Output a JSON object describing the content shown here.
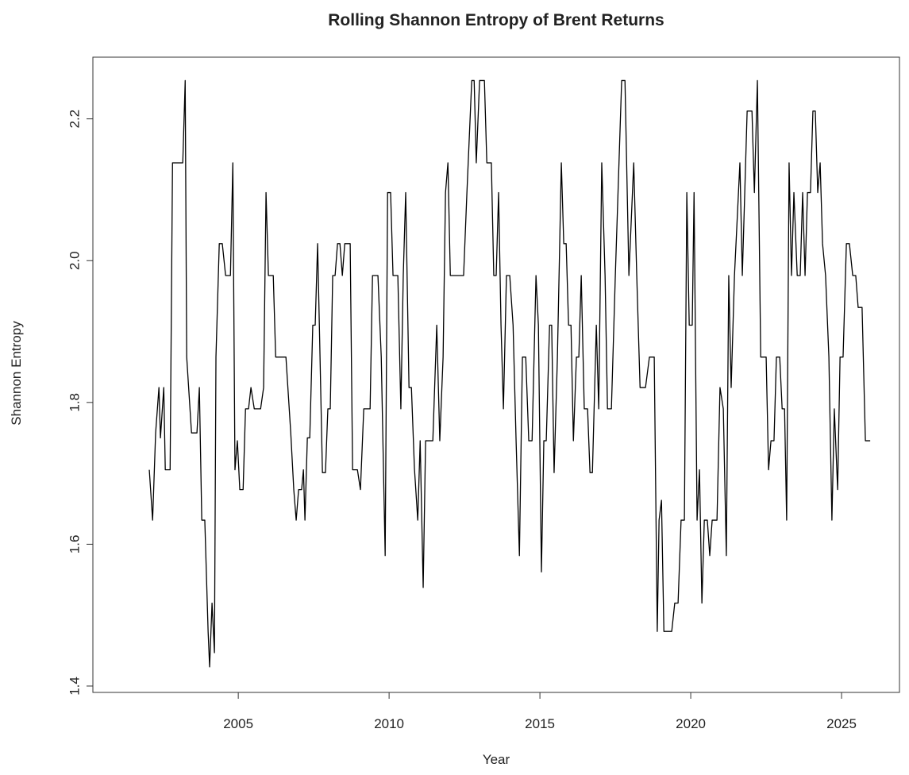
{
  "chart_data": {
    "type": "line",
    "title": "Rolling Shannon Entropy of Brent Returns",
    "x_label": "Year",
    "y_label": "Shannon Entropy",
    "color": "#000000",
    "x": [
      2002.05,
      2002.16,
      2002.26,
      2002.37,
      2002.42,
      2002.53,
      2002.58,
      2002.74,
      2002.82,
      2003.16,
      2003.24,
      2003.29,
      2003.45,
      2003.63,
      2003.71,
      2003.79,
      2003.89,
      2004.0,
      2004.05,
      2004.13,
      2004.21,
      2004.26,
      2004.37,
      2004.47,
      2004.58,
      2004.74,
      2004.82,
      2004.89,
      2004.97,
      2005.05,
      2005.16,
      2005.24,
      2005.34,
      2005.42,
      2005.53,
      2005.74,
      2005.84,
      2005.92,
      2006.0,
      2006.16,
      2006.24,
      2006.58,
      2006.74,
      2006.84,
      2006.92,
      2007.0,
      2007.1,
      2007.16,
      2007.21,
      2007.29,
      2007.37,
      2007.47,
      2007.55,
      2007.63,
      2007.71,
      2007.79,
      2007.89,
      2007.97,
      2008.05,
      2008.13,
      2008.21,
      2008.29,
      2008.37,
      2008.45,
      2008.53,
      2008.71,
      2008.79,
      2008.95,
      2009.05,
      2009.16,
      2009.37,
      2009.45,
      2009.63,
      2009.74,
      2009.87,
      2009.95,
      2010.05,
      2010.13,
      2010.29,
      2010.39,
      2010.47,
      2010.55,
      2010.66,
      2010.74,
      2010.84,
      2010.95,
      2011.03,
      2011.13,
      2011.21,
      2011.45,
      2011.58,
      2011.68,
      2011.79,
      2011.87,
      2011.95,
      2012.03,
      2012.47,
      2012.58,
      2012.74,
      2012.82,
      2012.89,
      2013.0,
      2013.16,
      2013.24,
      2013.39,
      2013.47,
      2013.55,
      2013.63,
      2013.71,
      2013.79,
      2013.89,
      2014.0,
      2014.11,
      2014.21,
      2014.32,
      2014.42,
      2014.53,
      2014.63,
      2014.74,
      2014.87,
      2014.95,
      2015.05,
      2015.13,
      2015.21,
      2015.32,
      2015.39,
      2015.47,
      2015.58,
      2015.71,
      2015.79,
      2015.87,
      2015.95,
      2016.03,
      2016.11,
      2016.21,
      2016.29,
      2016.37,
      2016.47,
      2016.58,
      2016.66,
      2016.74,
      2016.87,
      2016.95,
      2017.05,
      2017.16,
      2017.24,
      2017.37,
      2017.5,
      2017.71,
      2017.82,
      2017.95,
      2018.11,
      2018.21,
      2018.32,
      2018.5,
      2018.63,
      2018.79,
      2018.89,
      2018.95,
      2019.03,
      2019.11,
      2019.37,
      2019.47,
      2019.58,
      2019.68,
      2019.79,
      2019.87,
      2019.95,
      2020.05,
      2020.11,
      2020.21,
      2020.29,
      2020.37,
      2020.45,
      2020.55,
      2020.63,
      2020.71,
      2020.87,
      2020.97,
      2021.08,
      2021.18,
      2021.26,
      2021.34,
      2021.45,
      2021.63,
      2021.71,
      2021.87,
      2022.03,
      2022.11,
      2022.21,
      2022.32,
      2022.5,
      2022.58,
      2022.66,
      2022.76,
      2022.84,
      2022.95,
      2023.03,
      2023.11,
      2023.18,
      2023.26,
      2023.34,
      2023.42,
      2023.53,
      2023.63,
      2023.71,
      2023.79,
      2023.87,
      2023.97,
      2024.05,
      2024.13,
      2024.21,
      2024.29,
      2024.37,
      2024.47,
      2024.58,
      2024.68,
      2024.76,
      2024.87,
      2024.95,
      2025.05,
      2025.16,
      2025.26,
      2025.37,
      2025.47,
      2025.55,
      2025.68,
      2025.79,
      2025.95
    ],
    "values": [
      1.705,
      1.634,
      1.757,
      1.821,
      1.75,
      1.821,
      1.705,
      1.705,
      2.138,
      2.138,
      2.254,
      1.864,
      1.757,
      1.757,
      1.821,
      1.634,
      1.634,
      1.477,
      1.427,
      1.517,
      1.447,
      1.864,
      2.024,
      2.024,
      1.979,
      1.979,
      2.138,
      1.705,
      1.746,
      1.677,
      1.677,
      1.791,
      1.791,
      1.821,
      1.791,
      1.791,
      1.821,
      2.096,
      1.979,
      1.979,
      1.864,
      1.864,
      1.757,
      1.677,
      1.634,
      1.677,
      1.677,
      1.705,
      1.634,
      1.75,
      1.75,
      1.909,
      1.909,
      2.024,
      1.864,
      1.701,
      1.701,
      1.791,
      1.791,
      1.979,
      1.979,
      2.024,
      2.024,
      1.979,
      2.024,
      2.024,
      1.705,
      1.705,
      1.677,
      1.791,
      1.791,
      1.979,
      1.979,
      1.864,
      1.584,
      2.096,
      2.096,
      1.979,
      1.979,
      1.791,
      1.979,
      2.096,
      1.821,
      1.821,
      1.707,
      1.634,
      1.746,
      1.539,
      1.746,
      1.746,
      1.909,
      1.746,
      1.864,
      2.096,
      2.138,
      1.979,
      1.979,
      2.096,
      2.254,
      2.254,
      2.138,
      2.254,
      2.254,
      2.138,
      2.138,
      1.979,
      1.979,
      2.096,
      1.909,
      1.791,
      1.979,
      1.979,
      1.909,
      1.746,
      1.584,
      1.864,
      1.864,
      1.746,
      1.746,
      1.979,
      1.909,
      1.561,
      1.746,
      1.746,
      1.909,
      1.909,
      1.701,
      1.864,
      2.138,
      2.024,
      2.024,
      1.909,
      1.909,
      1.746,
      1.864,
      1.864,
      1.979,
      1.791,
      1.791,
      1.701,
      1.701,
      1.909,
      1.791,
      2.138,
      1.979,
      1.791,
      1.791,
      1.979,
      2.254,
      2.254,
      1.979,
      2.138,
      1.979,
      1.821,
      1.821,
      1.864,
      1.864,
      1.477,
      1.634,
      1.662,
      1.477,
      1.477,
      1.517,
      1.517,
      1.634,
      1.634,
      2.096,
      1.909,
      1.909,
      2.096,
      1.634,
      1.705,
      1.517,
      1.634,
      1.634,
      1.584,
      1.634,
      1.634,
      1.821,
      1.791,
      1.584,
      1.979,
      1.821,
      1.979,
      2.138,
      1.979,
      2.211,
      2.211,
      2.096,
      2.254,
      1.864,
      1.864,
      1.705,
      1.746,
      1.746,
      1.864,
      1.864,
      1.791,
      1.791,
      1.634,
      2.138,
      1.979,
      2.096,
      1.979,
      1.979,
      2.096,
      1.979,
      2.096,
      2.096,
      2.211,
      2.211,
      2.096,
      2.138,
      2.024,
      1.979,
      1.864,
      1.634,
      1.791,
      1.677,
      1.864,
      1.864,
      2.024,
      2.024,
      1.979,
      1.979,
      1.934,
      1.934,
      1.746,
      1.746
    ],
    "xlim": [
      2000.18,
      2026.92
    ],
    "ylim": [
      1.391,
      2.287
    ],
    "xticks": [
      2005,
      2010,
      2015,
      2020,
      2025
    ],
    "yticks": [
      1.4,
      1.6,
      1.8,
      {
        "value": 2,
        "label": "2.0"
      },
      2.2
    ]
  }
}
